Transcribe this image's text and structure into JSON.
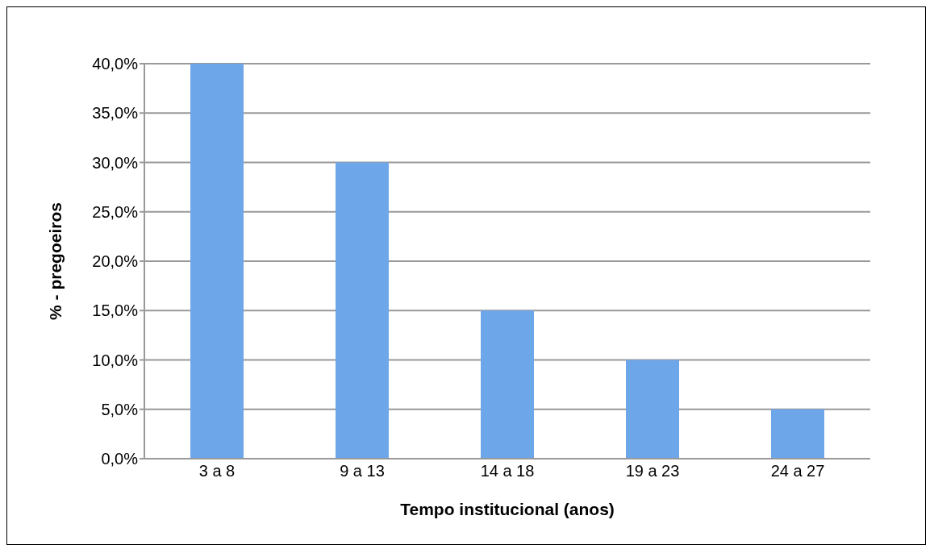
{
  "chart_data": {
    "type": "bar",
    "xlabel": "Tempo institucional (anos)",
    "ylabel": "% - pregoeiros",
    "categories": [
      "3 a 8",
      "9 a 13",
      "14 a 18",
      "19 a 23",
      "24 a 27"
    ],
    "values": [
      40,
      30,
      15,
      10,
      5
    ],
    "color": "#6ea6ea",
    "ylim": [
      0,
      40
    ],
    "yticks": [
      {
        "value": 0,
        "label": "0,0%"
      },
      {
        "value": 5,
        "label": "5,0%"
      },
      {
        "value": 10,
        "label": "10,0%"
      },
      {
        "value": 15,
        "label": "15,0%"
      },
      {
        "value": 20,
        "label": "20,0%"
      },
      {
        "value": 25,
        "label": "25,0%"
      },
      {
        "value": 30,
        "label": "30,0%"
      },
      {
        "value": 35,
        "label": "35,0%"
      },
      {
        "value": 40,
        "label": "40,0%"
      }
    ],
    "grid": "y",
    "legend": false
  }
}
